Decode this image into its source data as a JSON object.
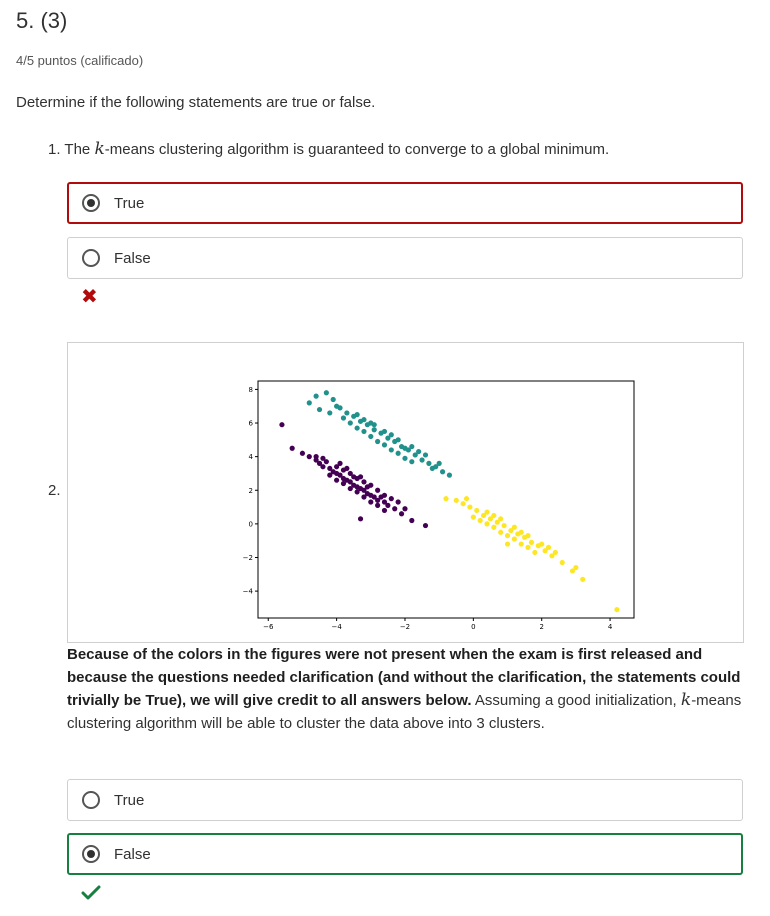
{
  "question": {
    "title": "5. (3)",
    "points": "4/5 puntos (calificado)",
    "intro": "Determine if the following statements are true or false."
  },
  "item1": {
    "number": "1.",
    "text_before": "The ",
    "kvar": "k",
    "text_after": "-means clustering algorithm is guaranteed to converge to a global minimum.",
    "options": [
      {
        "label": "True",
        "selected": true,
        "state": "incorrect"
      },
      {
        "label": "False",
        "selected": false,
        "state": "none"
      }
    ],
    "result": "incorrect",
    "result_icon": "x-mark-icon",
    "result_color": "#b20b0b"
  },
  "item2": {
    "number": "2.",
    "bold_text": "Because of the colors in the figures were not present when the exam is first released and because the questions needed clarification (and without the clarification, the statements could trivially be True), we will give credit to all answers below.",
    "text_before": " Assuming a good initialization, ",
    "kvar": "k",
    "text_after": "-means clustering algorithm will be able to cluster the data above into 3 clusters.",
    "options": [
      {
        "label": "True",
        "selected": false,
        "state": "none"
      },
      {
        "label": "False",
        "selected": true,
        "state": "correct"
      }
    ],
    "result": "correct",
    "result_icon": "checkmark-icon",
    "result_color": "#178040"
  },
  "colors": {
    "incorrect": "#b20b0b",
    "correct": "#178040",
    "cluster_purple": "#440154",
    "cluster_teal": "#21918c",
    "cluster_yellow": "#fde725"
  },
  "chart_data": {
    "type": "scatter",
    "title": "",
    "xlabel": "",
    "ylabel": "",
    "xlim": [
      -6.3,
      4.7
    ],
    "ylim": [
      -5.6,
      8.5
    ],
    "xticks": [
      -6,
      -4,
      -2,
      0,
      2,
      4
    ],
    "xtick_labels": [
      "−6",
      "−4",
      "−2",
      "0",
      "2",
      "4"
    ],
    "yticks": [
      -4,
      -2,
      0,
      2,
      4,
      6,
      8
    ],
    "ytick_labels": [
      "−4",
      "−2",
      "0",
      "2",
      "4",
      "6",
      "8"
    ],
    "grid": false,
    "legend": "none",
    "series": [
      {
        "color": "#440154",
        "points": [
          [
            -5.6,
            5.9
          ],
          [
            -5.3,
            4.5
          ],
          [
            -5.0,
            4.2
          ],
          [
            -4.8,
            4.0
          ],
          [
            -4.6,
            3.8
          ],
          [
            -4.5,
            3.6
          ],
          [
            -4.4,
            3.4
          ],
          [
            -4.2,
            3.3
          ],
          [
            -4.1,
            3.1
          ],
          [
            -4.0,
            3.0
          ],
          [
            -3.9,
            2.9
          ],
          [
            -3.8,
            2.7
          ],
          [
            -3.7,
            2.6
          ],
          [
            -3.6,
            2.5
          ],
          [
            -3.5,
            2.3
          ],
          [
            -3.4,
            2.2
          ],
          [
            -3.3,
            2.1
          ],
          [
            -3.2,
            2.0
          ],
          [
            -3.1,
            1.8
          ],
          [
            -3.0,
            1.7
          ],
          [
            -2.9,
            1.6
          ],
          [
            -2.8,
            1.4
          ],
          [
            -2.6,
            1.3
          ],
          [
            -2.5,
            1.1
          ],
          [
            -2.3,
            0.9
          ],
          [
            -2.1,
            0.6
          ],
          [
            -1.8,
            0.2
          ],
          [
            -1.4,
            -0.1
          ],
          [
            -4.3,
            3.7
          ],
          [
            -4.0,
            3.4
          ],
          [
            -3.8,
            3.2
          ],
          [
            -3.6,
            3.0
          ],
          [
            -3.4,
            2.7
          ],
          [
            -3.2,
            2.5
          ],
          [
            -3.0,
            2.3
          ],
          [
            -2.8,
            2.0
          ],
          [
            -2.6,
            1.7
          ],
          [
            -2.4,
            1.5
          ],
          [
            -4.2,
            2.9
          ],
          [
            -4.0,
            2.6
          ],
          [
            -3.8,
            2.4
          ],
          [
            -3.6,
            2.1
          ],
          [
            -3.4,
            1.9
          ],
          [
            -3.2,
            1.6
          ],
          [
            -3.0,
            1.3
          ],
          [
            -2.8,
            1.1
          ],
          [
            -2.6,
            0.8
          ],
          [
            -3.3,
            0.3
          ],
          [
            -2.0,
            0.9
          ],
          [
            -2.2,
            1.3
          ],
          [
            -3.9,
            3.6
          ],
          [
            -3.5,
            2.8
          ],
          [
            -3.1,
            2.2
          ],
          [
            -2.7,
            1.6
          ],
          [
            -4.6,
            4.0
          ],
          [
            -4.4,
            3.9
          ],
          [
            -3.7,
            3.3
          ],
          [
            -3.3,
            2.8
          ]
        ]
      },
      {
        "color": "#21918c",
        "points": [
          [
            -4.6,
            7.6
          ],
          [
            -4.3,
            7.8
          ],
          [
            -4.1,
            7.4
          ],
          [
            -3.9,
            6.9
          ],
          [
            -3.7,
            6.6
          ],
          [
            -3.5,
            6.4
          ],
          [
            -3.3,
            6.1
          ],
          [
            -3.1,
            5.9
          ],
          [
            -2.9,
            5.6
          ],
          [
            -2.7,
            5.4
          ],
          [
            -2.5,
            5.1
          ],
          [
            -2.3,
            4.9
          ],
          [
            -2.1,
            4.6
          ],
          [
            -1.9,
            4.4
          ],
          [
            -1.7,
            4.1
          ],
          [
            -1.5,
            3.8
          ],
          [
            -1.3,
            3.6
          ],
          [
            -1.1,
            3.4
          ],
          [
            -0.9,
            3.1
          ],
          [
            -0.7,
            2.9
          ],
          [
            -3.8,
            6.3
          ],
          [
            -3.6,
            6.0
          ],
          [
            -3.4,
            5.7
          ],
          [
            -3.2,
            5.5
          ],
          [
            -3.0,
            5.2
          ],
          [
            -2.8,
            4.9
          ],
          [
            -2.6,
            4.7
          ],
          [
            -2.4,
            4.4
          ],
          [
            -2.2,
            4.2
          ],
          [
            -2.0,
            3.9
          ],
          [
            -1.8,
            3.7
          ],
          [
            -3.4,
            6.5
          ],
          [
            -3.0,
            6.0
          ],
          [
            -2.6,
            5.5
          ],
          [
            -2.2,
            5.0
          ],
          [
            -1.8,
            4.6
          ],
          [
            -1.4,
            4.1
          ],
          [
            -1.0,
            3.6
          ],
          [
            -4.5,
            6.8
          ],
          [
            -4.8,
            7.2
          ],
          [
            -2.9,
            5.9
          ],
          [
            -2.4,
            5.3
          ],
          [
            -1.6,
            4.3
          ],
          [
            -3.2,
            6.2
          ],
          [
            -4.0,
            7.0
          ],
          [
            -4.2,
            6.6
          ],
          [
            -2.0,
            4.5
          ],
          [
            -1.2,
            3.3
          ]
        ]
      },
      {
        "color": "#fde725",
        "points": [
          [
            -0.8,
            1.5
          ],
          [
            -0.5,
            1.4
          ],
          [
            -0.3,
            1.2
          ],
          [
            -0.1,
            1.0
          ],
          [
            0.1,
            0.8
          ],
          [
            0.3,
            0.5
          ],
          [
            0.5,
            0.3
          ],
          [
            0.7,
            0.1
          ],
          [
            0.9,
            -0.1
          ],
          [
            1.1,
            -0.4
          ],
          [
            1.3,
            -0.6
          ],
          [
            1.5,
            -0.8
          ],
          [
            1.7,
            -1.1
          ],
          [
            1.9,
            -1.3
          ],
          [
            2.1,
            -1.6
          ],
          [
            2.3,
            -1.9
          ],
          [
            2.6,
            -2.3
          ],
          [
            2.9,
            -2.8
          ],
          [
            3.2,
            -3.3
          ],
          [
            0.0,
            0.4
          ],
          [
            0.2,
            0.2
          ],
          [
            0.4,
            0.0
          ],
          [
            0.6,
            -0.2
          ],
          [
            0.8,
            -0.5
          ],
          [
            1.0,
            -0.7
          ],
          [
            1.2,
            -0.9
          ],
          [
            1.4,
            -1.2
          ],
          [
            1.6,
            -1.4
          ],
          [
            1.8,
            -1.7
          ],
          [
            0.4,
            0.7
          ],
          [
            0.8,
            0.3
          ],
          [
            1.2,
            -0.2
          ],
          [
            1.6,
            -0.7
          ],
          [
            2.0,
            -1.2
          ],
          [
            2.4,
            -1.7
          ],
          [
            -0.2,
            1.5
          ],
          [
            0.6,
            0.5
          ],
          [
            1.4,
            -0.5
          ],
          [
            2.2,
            -1.4
          ],
          [
            3.0,
            -2.6
          ],
          [
            1.0,
            -1.2
          ],
          [
            4.2,
            -5.1
          ]
        ]
      }
    ]
  }
}
